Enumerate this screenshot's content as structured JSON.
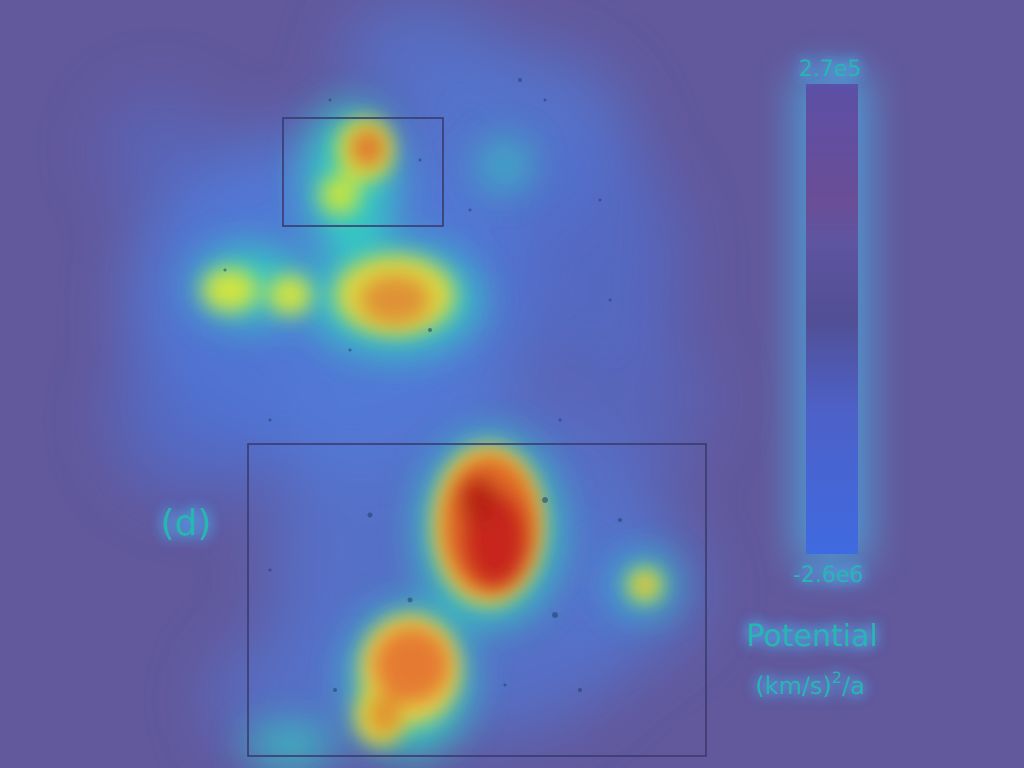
{
  "figure": {
    "panel_label": "(d)",
    "colorbar": {
      "max_label": "2.7e5",
      "min_label": "-2.6e6",
      "quantity_label": "Potential",
      "units_base": "(km/s)",
      "units_exponent": "2",
      "units_tail": "/a"
    },
    "colors": {
      "background": "#62589c",
      "label_text": "#25b8b0",
      "box_outline": "#3a3a6e"
    }
  }
}
